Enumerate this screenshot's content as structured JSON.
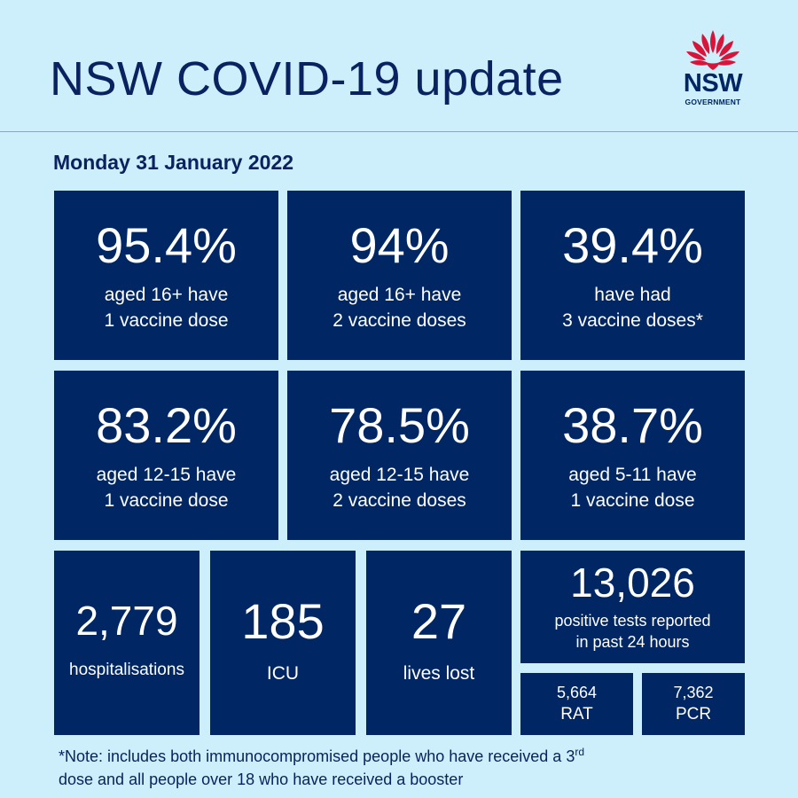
{
  "header": {
    "title": "NSW COVID-19 update"
  },
  "logo": {
    "word": "NSW",
    "sub": "GOVERNMENT",
    "name": "nsw-waratah-logo"
  },
  "date": "Monday 31 January 2022",
  "vaccination": [
    {
      "value": "95.4%",
      "line1": "aged 16+ have",
      "line2": "1 vaccine dose"
    },
    {
      "value": "94%",
      "line1": "aged 16+ have",
      "line2": "2 vaccine doses"
    },
    {
      "value": "39.4%",
      "line1": "have had",
      "line2": "3 vaccine doses*"
    },
    {
      "value": "83.2%",
      "line1": "aged 12-15 have",
      "line2": "1 vaccine dose"
    },
    {
      "value": "78.5%",
      "line1": "aged 12-15 have",
      "line2": "2 vaccine doses"
    },
    {
      "value": "38.7%",
      "line1": "aged 5-11 have",
      "line2": "1 vaccine dose"
    }
  ],
  "stats": {
    "hospitalisations": {
      "value": "2,779",
      "label": "hospitalisations"
    },
    "icu": {
      "value": "185",
      "label": "ICU"
    },
    "lives_lost": {
      "value": "27",
      "label": "lives lost"
    },
    "positive_tests": {
      "value": "13,026",
      "line1": "positive tests reported",
      "line2": "in past 24 hours"
    },
    "rat": {
      "value": "5,664",
      "label": "RAT"
    },
    "pcr": {
      "value": "7,362",
      "label": "PCR"
    }
  },
  "note": {
    "part1": "*Note: includes both immunocompromised  people who have received a 3",
    "sup": "rd",
    "part2": "dose and all people over 18 who have received a booster"
  },
  "colors": {
    "background": "#cdeefb",
    "box": "#002664",
    "text_dark": "#0a2360",
    "waratah_red": "#d7153a"
  }
}
